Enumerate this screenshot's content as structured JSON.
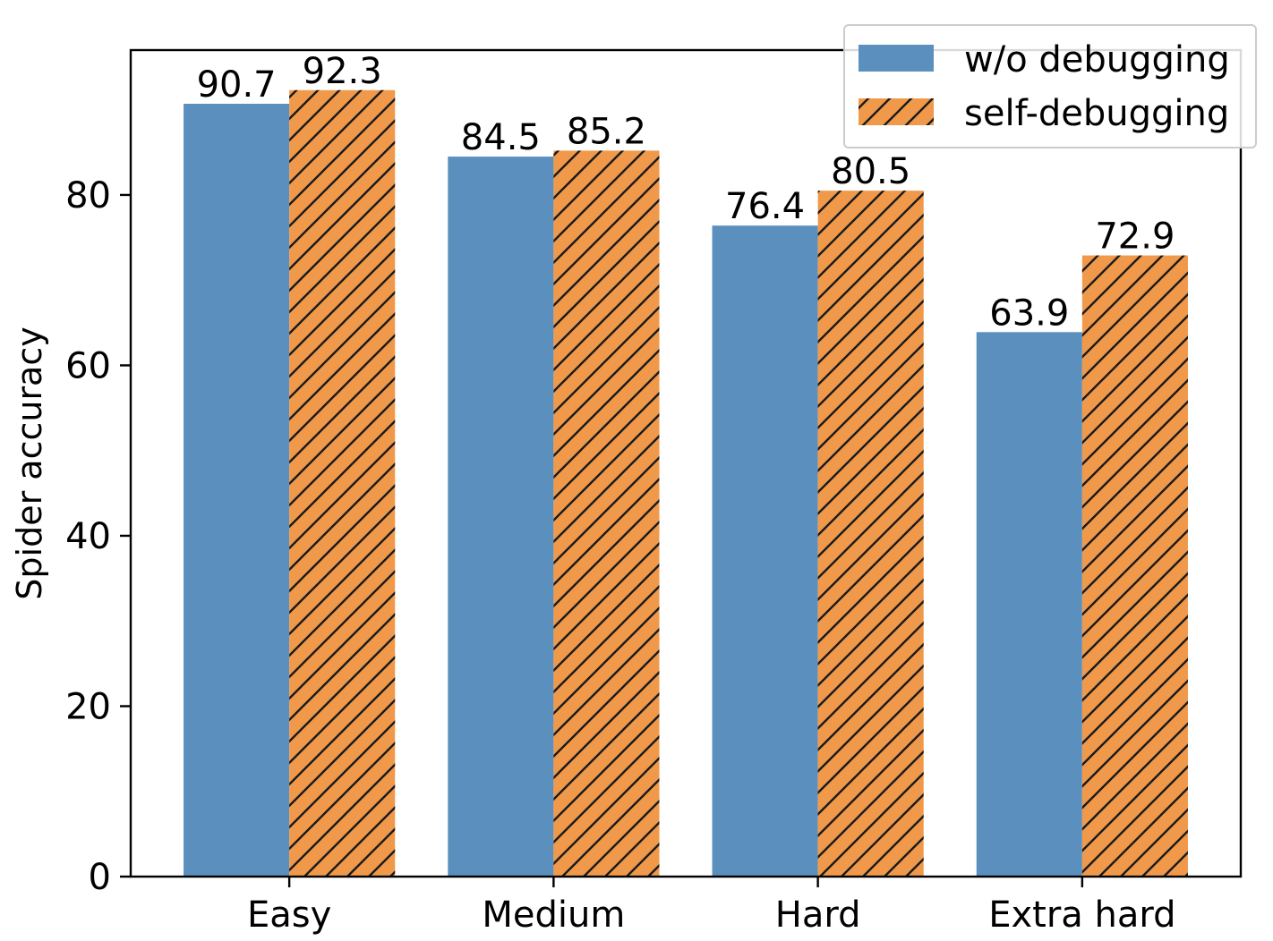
{
  "chart_data": {
    "type": "bar",
    "categories": [
      "Easy",
      "Medium",
      "Hard",
      "Extra hard"
    ],
    "series": [
      {
        "name": "w/o debugging",
        "values": [
          90.7,
          84.5,
          76.4,
          63.9
        ],
        "color": "#5b8fbd",
        "hatch": false
      },
      {
        "name": "self-debugging",
        "values": [
          92.3,
          85.2,
          80.5,
          72.9
        ],
        "color": "#f0994a",
        "hatch": true
      }
    ],
    "value_labels": [
      [
        "90.7",
        "84.5",
        "76.4",
        "63.9"
      ],
      [
        "92.3",
        "85.2",
        "80.5",
        "72.9"
      ]
    ],
    "ylabel": "Spider accuracy",
    "xlabel": "",
    "ylim": [
      0,
      97
    ],
    "yticks": [
      0,
      20,
      40,
      60,
      80
    ],
    "legend_position": "top-right",
    "grid": false
  }
}
